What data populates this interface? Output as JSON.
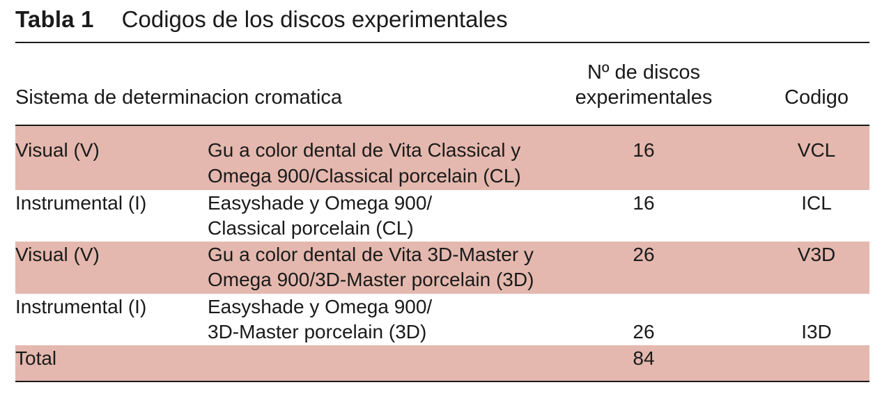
{
  "table": {
    "label": "Tabla 1",
    "title": "Codigos de los discos experimentales",
    "headers": {
      "system": "Sistema de determinacion cromatica",
      "count_line1": "Nº de discos",
      "count_line2": "experimentales",
      "code": "Codigo"
    },
    "rows": [
      {
        "system": "Visual (V)",
        "desc_line1": "Gu a color dental de Vita Classical y",
        "desc_line2": "Omega 900/Classical porcelain (CL)",
        "count": "16",
        "code": "VCL"
      },
      {
        "system": "Instrumental (I)",
        "desc_line1": "Easyshade y Omega 900/",
        "desc_line2": "Classical porcelain (CL)",
        "count": "16",
        "code": "ICL"
      },
      {
        "system": "Visual (V)",
        "desc_line1": "Gu a color dental de Vita 3D-Master y",
        "desc_line2": "Omega 900/3D-Master porcelain (3D)",
        "count": "26",
        "code": "V3D"
      },
      {
        "system": "Instrumental (I)",
        "desc_line1": "Easyshade y Omega 900/",
        "desc_line2": "3D-Master porcelain (3D)",
        "count": "26",
        "code": "I3D"
      }
    ],
    "total": {
      "label": "Total",
      "count": "84"
    },
    "colors": {
      "band": "#e4b8ae",
      "text": "#1a1a1a"
    }
  }
}
